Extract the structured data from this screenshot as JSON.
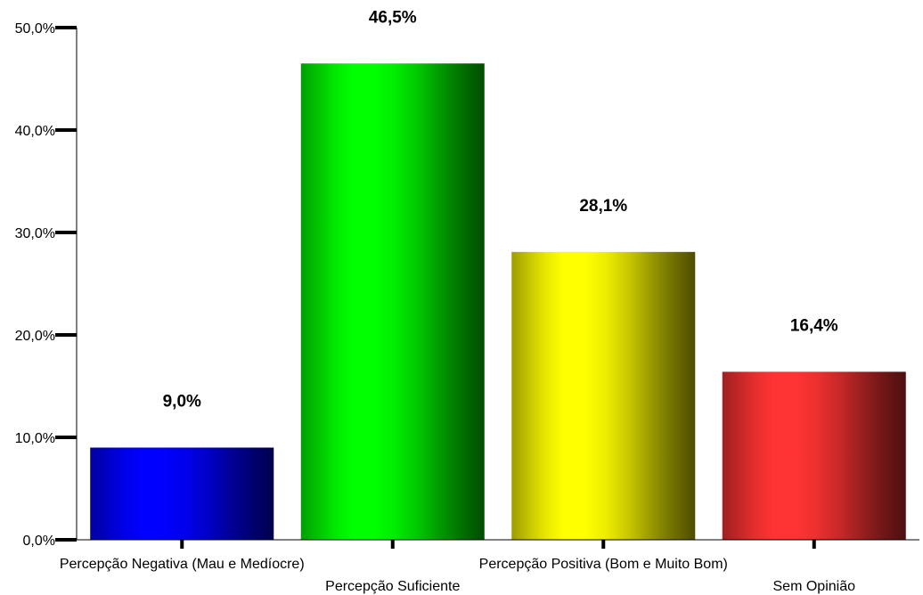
{
  "chart_data": {
    "type": "bar",
    "categories": [
      "Percepção Negativa (Mau e Medíocre)",
      "Percepção Suficiente",
      "Percepção Positiva (Bom e Muito Bom)",
      "Sem Opinião"
    ],
    "values": [
      9.0,
      46.5,
      28.1,
      16.4
    ],
    "value_labels": [
      "9,0%",
      "46,5%",
      "28,1%",
      "16,4%"
    ],
    "colors": [
      "#0000ff",
      "#00ff00",
      "#ffff00",
      "#ff3333"
    ],
    "ylim": [
      0,
      50
    ],
    "yticks": [
      0,
      10,
      20,
      30,
      40,
      50
    ],
    "ytick_labels": [
      "0,0%",
      "10,0%",
      "20,0%",
      "30,0%",
      "40,0%",
      "50,0%"
    ],
    "grid": false,
    "legend": "none"
  }
}
